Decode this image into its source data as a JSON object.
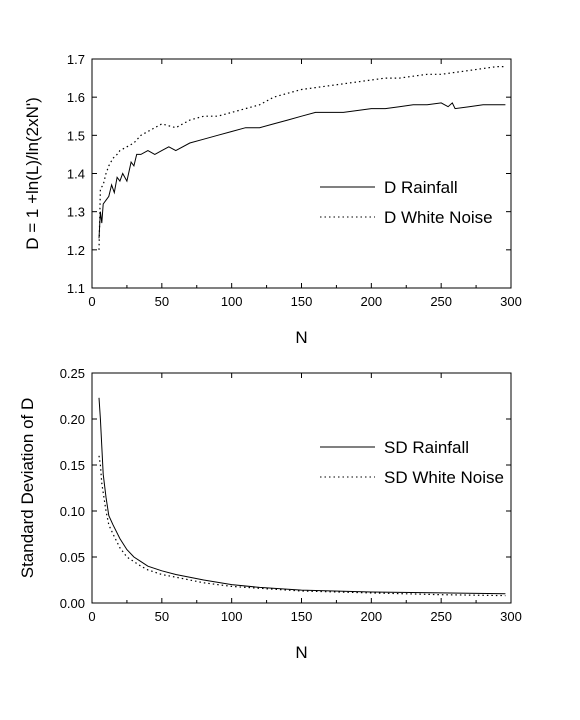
{
  "chart_data": [
    {
      "type": "line",
      "xlabel": "N",
      "ylabel": "D = 1 +ln(L)/ln(2xN')",
      "xlim": [
        0,
        300
      ],
      "ylim": [
        1.1,
        1.7
      ],
      "xticks": [
        0,
        50,
        100,
        150,
        200,
        250,
        300
      ],
      "yticks": [
        1.1,
        1.2,
        1.3,
        1.4,
        1.5,
        1.6,
        1.7
      ],
      "ytick_decimals": 1,
      "grid": false,
      "legend_position": "right-middle",
      "series": [
        {
          "name": "D Rainfall",
          "style": "solid",
          "x": [
            5,
            6,
            7,
            8,
            10,
            12,
            14,
            16,
            18,
            20,
            22,
            25,
            28,
            30,
            32,
            35,
            40,
            45,
            50,
            55,
            60,
            70,
            80,
            90,
            100,
            110,
            120,
            130,
            140,
            150,
            160,
            170,
            180,
            190,
            200,
            210,
            220,
            230,
            240,
            250,
            255,
            258,
            260,
            270,
            280,
            290,
            296
          ],
          "y": [
            1.23,
            1.3,
            1.27,
            1.32,
            1.33,
            1.34,
            1.37,
            1.35,
            1.39,
            1.38,
            1.4,
            1.38,
            1.43,
            1.42,
            1.45,
            1.45,
            1.46,
            1.45,
            1.46,
            1.47,
            1.46,
            1.48,
            1.49,
            1.5,
            1.51,
            1.52,
            1.52,
            1.53,
            1.54,
            1.55,
            1.56,
            1.56,
            1.56,
            1.565,
            1.57,
            1.57,
            1.575,
            1.58,
            1.58,
            1.585,
            1.575,
            1.585,
            1.57,
            1.575,
            1.58,
            1.58,
            1.58
          ]
        },
        {
          "name": "D White Noise",
          "style": "dotted",
          "x": [
            5,
            6,
            8,
            10,
            12,
            15,
            18,
            20,
            25,
            30,
            35,
            40,
            50,
            60,
            70,
            80,
            90,
            100,
            110,
            120,
            130,
            140,
            150,
            160,
            170,
            180,
            190,
            200,
            210,
            220,
            230,
            240,
            250,
            260,
            270,
            280,
            290,
            296
          ],
          "y": [
            1.2,
            1.36,
            1.37,
            1.4,
            1.42,
            1.44,
            1.45,
            1.46,
            1.47,
            1.48,
            1.5,
            1.51,
            1.53,
            1.52,
            1.54,
            1.55,
            1.55,
            1.56,
            1.57,
            1.58,
            1.6,
            1.61,
            1.62,
            1.625,
            1.63,
            1.635,
            1.64,
            1.645,
            1.65,
            1.65,
            1.655,
            1.66,
            1.66,
            1.665,
            1.67,
            1.675,
            1.68,
            1.68
          ]
        }
      ]
    },
    {
      "type": "line",
      "xlabel": "N",
      "ylabel": "Standard Deviation of  D",
      "xlim": [
        0,
        300
      ],
      "ylim": [
        0,
        0.25
      ],
      "xticks": [
        0,
        50,
        100,
        150,
        200,
        250,
        300
      ],
      "yticks": [
        0,
        0.05,
        0.1,
        0.15,
        0.2,
        0.25
      ],
      "ytick_decimals": 2,
      "grid": false,
      "legend_position": "right-middle",
      "series": [
        {
          "name": "SD Rainfall",
          "style": "solid",
          "x": [
            5,
            6,
            7,
            8,
            10,
            12,
            15,
            20,
            25,
            30,
            35,
            40,
            50,
            60,
            70,
            80,
            100,
            120,
            150,
            200,
            250,
            296
          ],
          "y": [
            0.223,
            0.2,
            0.17,
            0.14,
            0.115,
            0.095,
            0.085,
            0.07,
            0.058,
            0.05,
            0.045,
            0.04,
            0.035,
            0.031,
            0.028,
            0.025,
            0.02,
            0.017,
            0.014,
            0.012,
            0.011,
            0.01
          ]
        },
        {
          "name": "SD White Noise",
          "style": "dotted",
          "x": [
            5,
            6,
            7,
            8,
            10,
            12,
            15,
            20,
            25,
            30,
            35,
            40,
            50,
            60,
            70,
            80,
            100,
            120,
            150,
            200,
            250,
            296
          ],
          "y": [
            0.16,
            0.15,
            0.13,
            0.12,
            0.1,
            0.085,
            0.075,
            0.06,
            0.05,
            0.045,
            0.04,
            0.036,
            0.031,
            0.028,
            0.025,
            0.022,
            0.018,
            0.016,
            0.013,
            0.011,
            0.009,
            0.008
          ]
        }
      ]
    }
  ]
}
